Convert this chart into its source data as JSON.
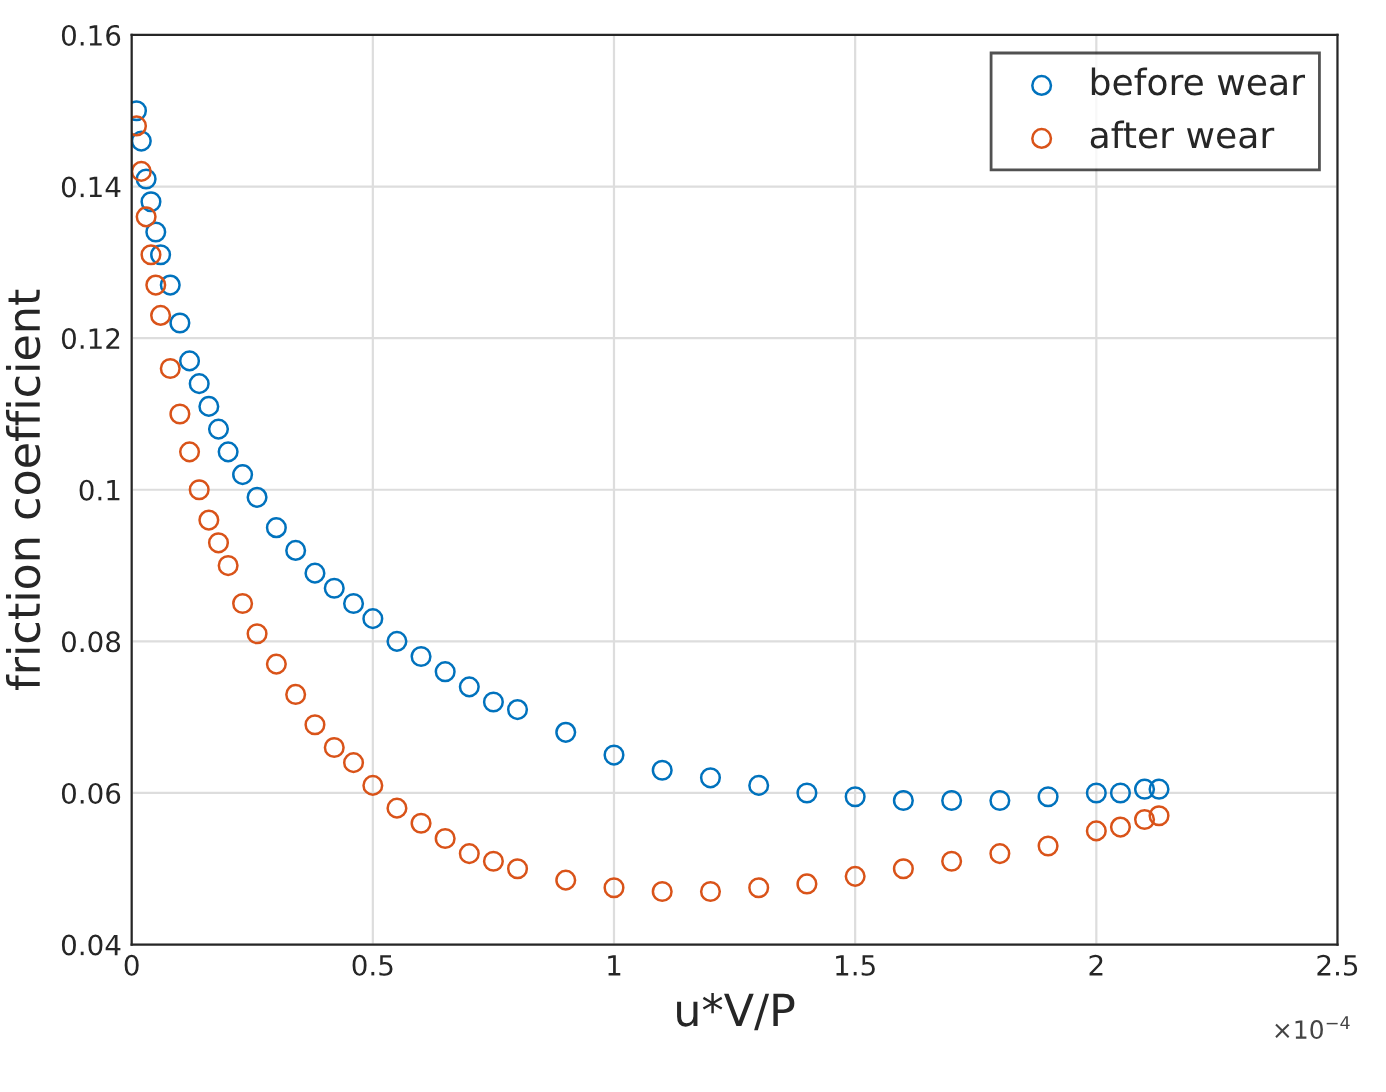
{
  "chart_data": {
    "type": "scatter",
    "xlabel": "u*V/P",
    "ylabel": "friction coefficient",
    "x": [
      0.01,
      0.02,
      0.03,
      0.04,
      0.05,
      0.06,
      0.08,
      0.1,
      0.12,
      0.14,
      0.16,
      0.18,
      0.2,
      0.23,
      0.26,
      0.3,
      0.34,
      0.38,
      0.42,
      0.46,
      0.5,
      0.55,
      0.6,
      0.65,
      0.7,
      0.75,
      0.8,
      0.9,
      1.0,
      1.1,
      1.2,
      1.3,
      1.4,
      1.5,
      1.6,
      1.7,
      1.8,
      1.9,
      2.0,
      2.05,
      2.1,
      2.13
    ],
    "series": [
      {
        "name": "before wear",
        "color": "#0072bd",
        "values": [
          0.15,
          0.146,
          0.141,
          0.138,
          0.134,
          0.131,
          0.127,
          0.122,
          0.117,
          0.114,
          0.111,
          0.108,
          0.105,
          0.102,
          0.099,
          0.095,
          0.092,
          0.089,
          0.087,
          0.085,
          0.083,
          0.08,
          0.078,
          0.076,
          0.074,
          0.072,
          0.071,
          0.068,
          0.065,
          0.063,
          0.062,
          0.061,
          0.06,
          0.0595,
          0.059,
          0.059,
          0.059,
          0.0595,
          0.06,
          0.06,
          0.0605,
          0.0605
        ]
      },
      {
        "name": "after wear",
        "color": "#d95319",
        "values": [
          0.148,
          0.142,
          0.136,
          0.131,
          0.127,
          0.123,
          0.116,
          0.11,
          0.105,
          0.1,
          0.096,
          0.093,
          0.09,
          0.085,
          0.081,
          0.077,
          0.073,
          0.069,
          0.066,
          0.064,
          0.061,
          0.058,
          0.056,
          0.054,
          0.052,
          0.051,
          0.05,
          0.0485,
          0.0475,
          0.047,
          0.047,
          0.0475,
          0.048,
          0.049,
          0.05,
          0.051,
          0.052,
          0.053,
          0.055,
          0.0555,
          0.0565,
          0.057
        ]
      }
    ],
    "xlim": [
      0,
      2.5
    ],
    "xticks": [
      0,
      0.5,
      1,
      1.5,
      2,
      2.5
    ],
    "ylim": [
      0.04,
      0.16
    ],
    "yticks": [
      0.04,
      0.06,
      0.08,
      0.1,
      0.12,
      0.14,
      0.16
    ],
    "annotations": [
      "×10$^{−4}$"
    ],
    "grid": true,
    "legend": "top right",
    "marker": "circle"
  }
}
